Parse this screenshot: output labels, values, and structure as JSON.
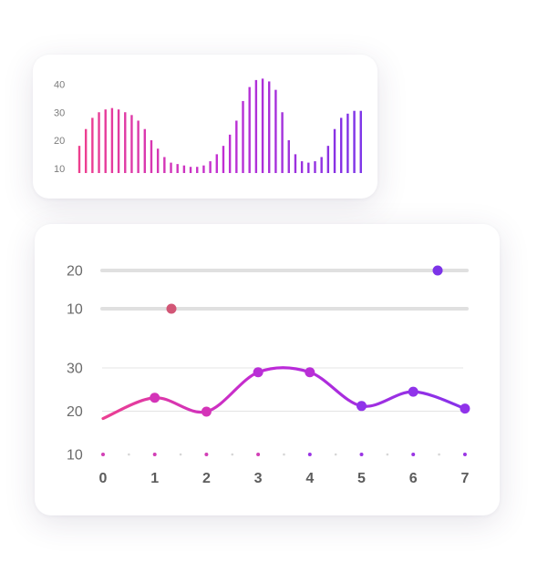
{
  "chart_data": [
    {
      "type": "bar",
      "y_ticks": [
        "10",
        "20",
        "30",
        "40"
      ],
      "ylim": [
        5,
        45
      ],
      "values": [
        18,
        24,
        28,
        30,
        31,
        31.5,
        31,
        30,
        29,
        27,
        24,
        20,
        17,
        14,
        12,
        11.5,
        11,
        10.5,
        10.5,
        11,
        12.5,
        15,
        18,
        22,
        27,
        34,
        39,
        41.5,
        42,
        41,
        38,
        30,
        20,
        15,
        12.5,
        12,
        12.5,
        14,
        18,
        24,
        28,
        29.5,
        30.5,
        30.5
      ],
      "colors": {
        "start": "#ee3f8e",
        "mid": "#c22fd2",
        "end": "#7c33e8"
      },
      "grid": false
    },
    {
      "type": "slider",
      "y_ticks": [
        "20",
        "10"
      ],
      "series": [
        {
          "value": 0.92,
          "color_start": "#ee3f8e",
          "color_end": "#7c33e8"
        },
        {
          "value": 0.19,
          "color_start": "#f23e58",
          "color_end": "#d25676"
        }
      ],
      "track_color": "#e0e0e0"
    },
    {
      "type": "line",
      "x": [
        0,
        1,
        2,
        3,
        4,
        5,
        6,
        7
      ],
      "x_ticks": [
        "0",
        "1",
        "2",
        "3",
        "4",
        "5",
        "6",
        "7"
      ],
      "y_ticks": [
        "10",
        "20",
        "30"
      ],
      "ylim": [
        10,
        30
      ],
      "start_value": 18.3,
      "points": [
        {
          "x": 1,
          "y": 23.1
        },
        {
          "x": 2,
          "y": 19.9
        },
        {
          "x": 3,
          "y": 29.0
        },
        {
          "x": 4,
          "y": 29.0
        },
        {
          "x": 5,
          "y": 21.2
        },
        {
          "x": 6,
          "y": 24.5
        },
        {
          "x": 7,
          "y": 20.6
        }
      ],
      "grid": true,
      "colors": {
        "start": "#ec3f91",
        "mid": "#c02ad6",
        "end": "#8632ea"
      }
    }
  ]
}
